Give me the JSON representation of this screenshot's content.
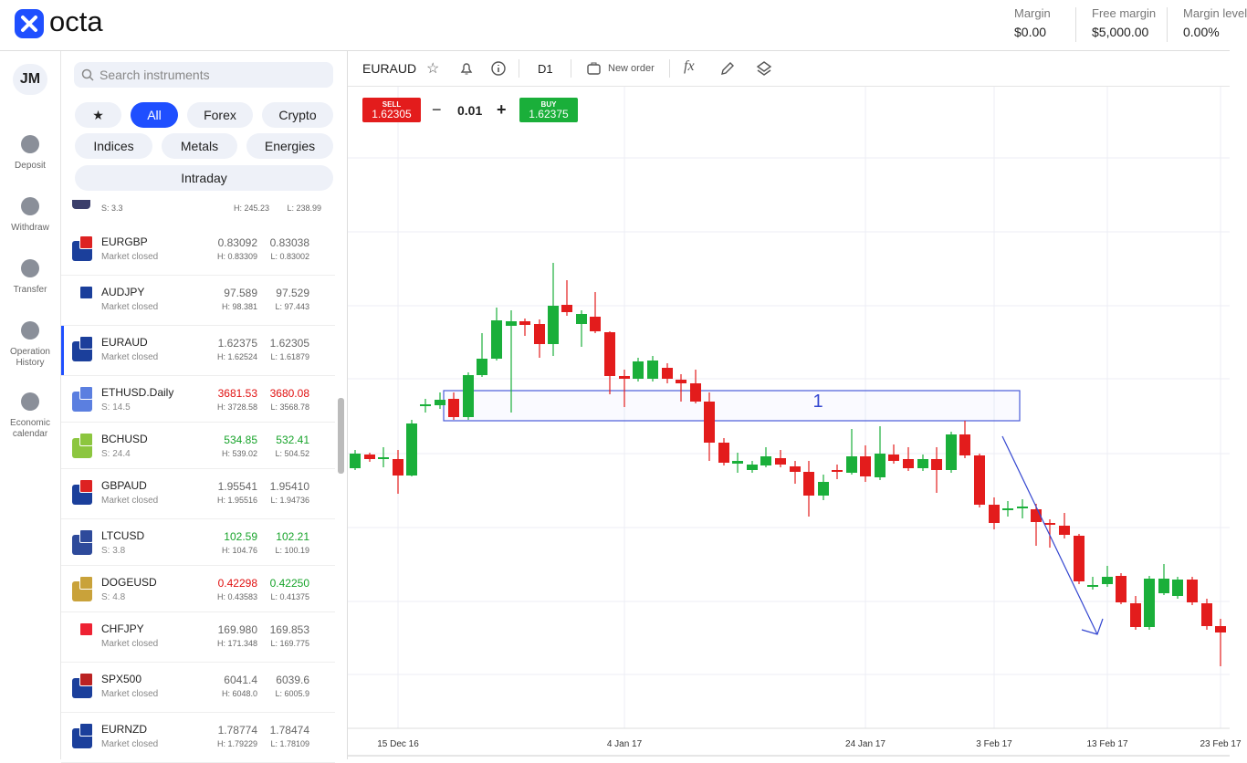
{
  "header": {
    "logo": "octa",
    "stats": [
      {
        "label": "Margin",
        "value": "$0.00"
      },
      {
        "label": "Free margin",
        "value": "$5,000.00"
      },
      {
        "label": "Margin level",
        "value": "0.00%"
      }
    ]
  },
  "nav": {
    "user": "JM",
    "items": [
      "Deposit",
      "Withdraw",
      "Transfer",
      "Operation History",
      "Economic calendar"
    ]
  },
  "instruments": {
    "search": "Search instruments",
    "tabs": [
      "All",
      "Forex",
      "Crypto",
      "Indices",
      "Metals",
      "Energies",
      "Intraday"
    ],
    "partial_row": {
      "info": "S: 3.3",
      "high": "H: 245.23",
      "low": "L: 238.99"
    },
    "rows": [
      {
        "name": "EURGBP",
        "info": "Market closed",
        "bid": "0.83092",
        "ask": "0.83038",
        "high": "H: 0.83309",
        "low": "L: 0.83002",
        "bid_color": "#666",
        "ask_color": "#666"
      },
      {
        "name": "AUDJPY",
        "info": "Market closed",
        "bid": "97.589",
        "ask": "97.529",
        "high": "H: 98.381",
        "low": "L: 97.443",
        "bid_color": "#666",
        "ask_color": "#666"
      },
      {
        "name": "EURAUD",
        "info": "Market closed",
        "bid": "1.62375",
        "ask": "1.62305",
        "high": "H: 1.62524",
        "low": "L: 1.61879",
        "bid_color": "#666",
        "ask_color": "#666"
      },
      {
        "name": "ETHUSD.Daily",
        "info": "S: 14.5",
        "bid": "3681.53",
        "ask": "3680.08",
        "high": "H: 3728.58",
        "low": "L: 3568.78",
        "bid_color": "#e01010",
        "ask_color": "#e01010"
      },
      {
        "name": "BCHUSD",
        "info": "S: 24.4",
        "bid": "534.85",
        "ask": "532.41",
        "high": "H: 539.02",
        "low": "L: 504.52",
        "bid_color": "#17a32a",
        "ask_color": "#17a32a"
      },
      {
        "name": "GBPAUD",
        "info": "Market closed",
        "bid": "1.95541",
        "ask": "1.95410",
        "high": "H: 1.95516",
        "low": "L: 1.94736",
        "bid_color": "#666",
        "ask_color": "#666"
      },
      {
        "name": "LTCUSD",
        "info": "S: 3.8",
        "bid": "102.59",
        "ask": "102.21",
        "high": "H: 104.76",
        "low": "L: 100.19",
        "bid_color": "#17a32a",
        "ask_color": "#17a32a"
      },
      {
        "name": "DOGEUSD",
        "info": "S: 4.8",
        "bid": "0.42298",
        "ask": "0.42250",
        "high": "H: 0.43583",
        "low": "L: 0.41375",
        "bid_color": "#e01010",
        "ask_color": "#17a32a"
      },
      {
        "name": "CHFJPY",
        "info": "Market closed",
        "bid": "169.980",
        "ask": "169.853",
        "high": "H: 171.348",
        "low": "L: 169.775",
        "bid_color": "#666",
        "ask_color": "#666"
      },
      {
        "name": "SPX500",
        "info": "Market closed",
        "bid": "6041.4",
        "ask": "6039.6",
        "high": "H: 6048.0",
        "low": "L: 6005.9",
        "bid_color": "#666",
        "ask_color": "#666"
      },
      {
        "name": "EURNZD",
        "info": "Market closed",
        "bid": "1.78774",
        "ask": "1.78474",
        "high": "H: 1.79229",
        "low": "L: 1.78109",
        "bid_color": "#666",
        "ask_color": "#666"
      }
    ]
  },
  "chart": {
    "symbol": "EURAUD",
    "timeframe": "D1",
    "new_order": "New order",
    "sell": {
      "label": "SELL",
      "price": "1.62305"
    },
    "lot": "0.01",
    "buy": {
      "label": "BUY",
      "price": "1.62375"
    },
    "annotation": "1",
    "x_labels": [
      "15 Dec 16",
      "4 Jan 17",
      "24 Jan 17",
      "3 Feb 17",
      "13 Feb 17",
      "23 Feb 17"
    ]
  }
}
